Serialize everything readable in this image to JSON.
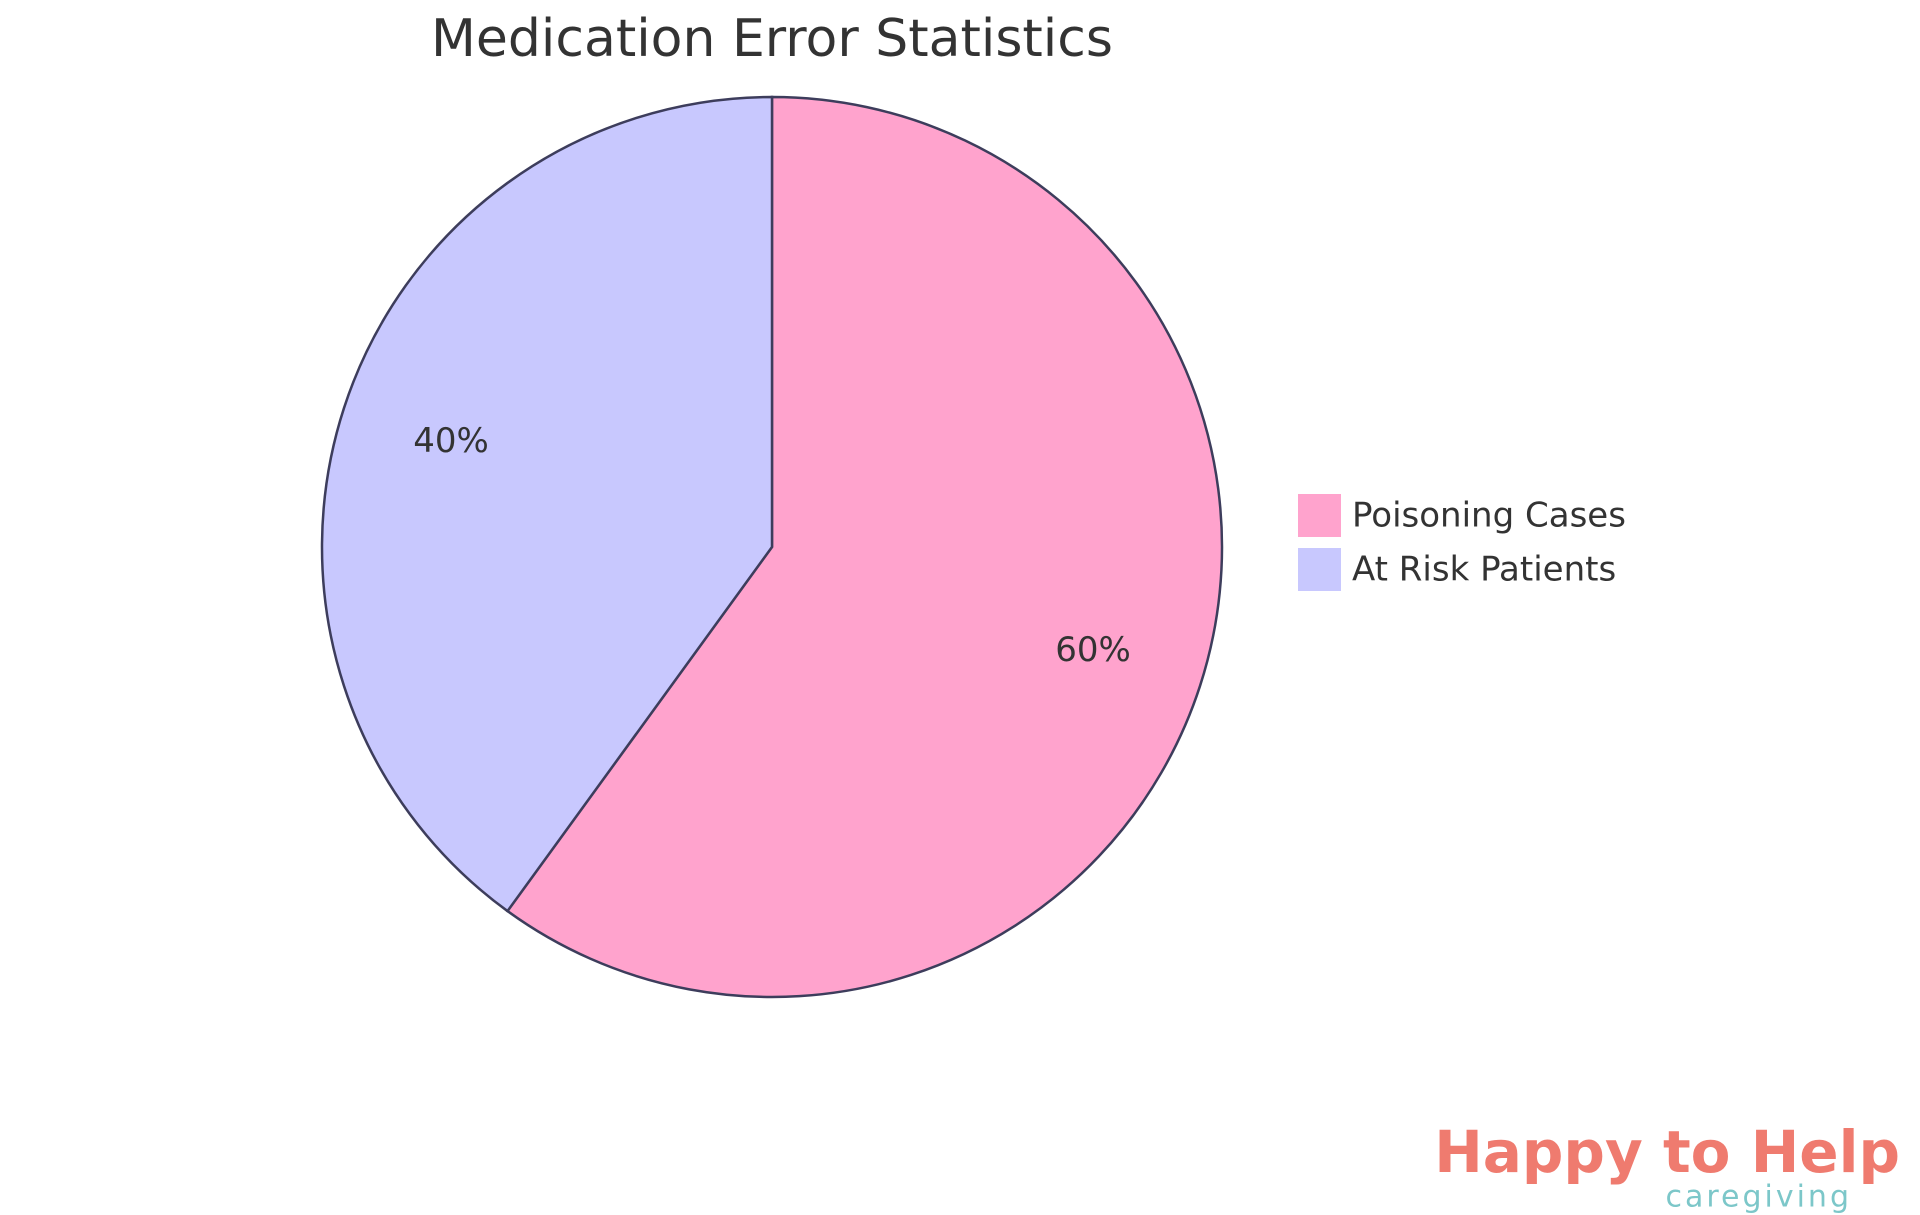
{
  "chart_data": {
    "type": "pie",
    "title": "Medication Error Statistics",
    "categories": [
      "Poisoning Cases",
      "At Risk Patients"
    ],
    "values": [
      60,
      40
    ],
    "value_labels": [
      "60%",
      "40%"
    ],
    "colors": [
      "#ffa3cd",
      "#c8c8fe"
    ],
    "legend": "right",
    "logo": {
      "text": "Happy to Help",
      "subtext": "caregiving"
    }
  }
}
